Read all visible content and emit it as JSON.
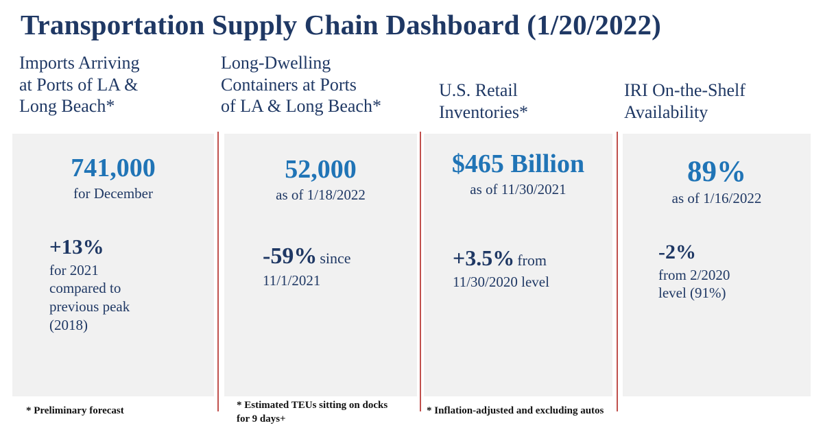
{
  "title": "Transportation Supply Chain Dashboard (1/20/2022)",
  "colors": {
    "navy": "#1F3864",
    "accent_blue": "#2074B6",
    "divider_red": "#C0504D",
    "panel_gray": "#F1F1F1",
    "footnote_black": "#111111"
  },
  "columns": [
    {
      "header": "Imports Arriving at Ports of LA & Long Beach*",
      "header_lines": [
        "Imports Arriving",
        "at Ports of LA &",
        "Long Beach*"
      ],
      "primary": {
        "value": "741,000",
        "caption_lines": [
          "for December"
        ]
      },
      "secondary": {
        "value": "+13%",
        "suffix": "",
        "caption_lines": [
          "for 2021",
          "compared to",
          "previous peak",
          "(2018)"
        ]
      },
      "footnote_lines": [
        "* Preliminary forecast"
      ]
    },
    {
      "header": "Long-Dwelling Containers at Ports of LA & Long Beach*",
      "header_lines": [
        "Long-Dwelling",
        "Containers at Ports",
        "of LA & Long Beach*"
      ],
      "primary": {
        "value": "52,000",
        "caption_lines": [
          "as of 1/18/2022"
        ]
      },
      "secondary": {
        "value": "-59%",
        "suffix": "since",
        "caption_lines": [
          "11/1/2021"
        ]
      },
      "footnote_lines": [
        "* Estimated TEUs sitting on docks",
        "for 9 days+"
      ]
    },
    {
      "header": "U.S. Retail Inventories*",
      "header_lines": [
        "U.S. Retail",
        "Inventories*"
      ],
      "primary": {
        "value": "$465 Billion",
        "caption_lines": [
          "as of 11/30/2021"
        ]
      },
      "secondary": {
        "value": "+3.5%",
        "suffix": "from",
        "caption_lines": [
          "11/30/2020 level"
        ]
      },
      "footnote_lines": [
        "* Inflation-adjusted and excluding autos"
      ]
    },
    {
      "header": "IRI On-the-Shelf Availability",
      "header_lines": [
        "IRI On-the-Shelf",
        "Availability"
      ],
      "primary": {
        "value": "89%",
        "caption_lines": [
          "as of 1/16/2022"
        ]
      },
      "secondary": {
        "value": "-2%",
        "suffix": "",
        "caption_lines": [
          "from 2/2020",
          "level (91%)"
        ]
      },
      "footnote_lines": []
    }
  ]
}
